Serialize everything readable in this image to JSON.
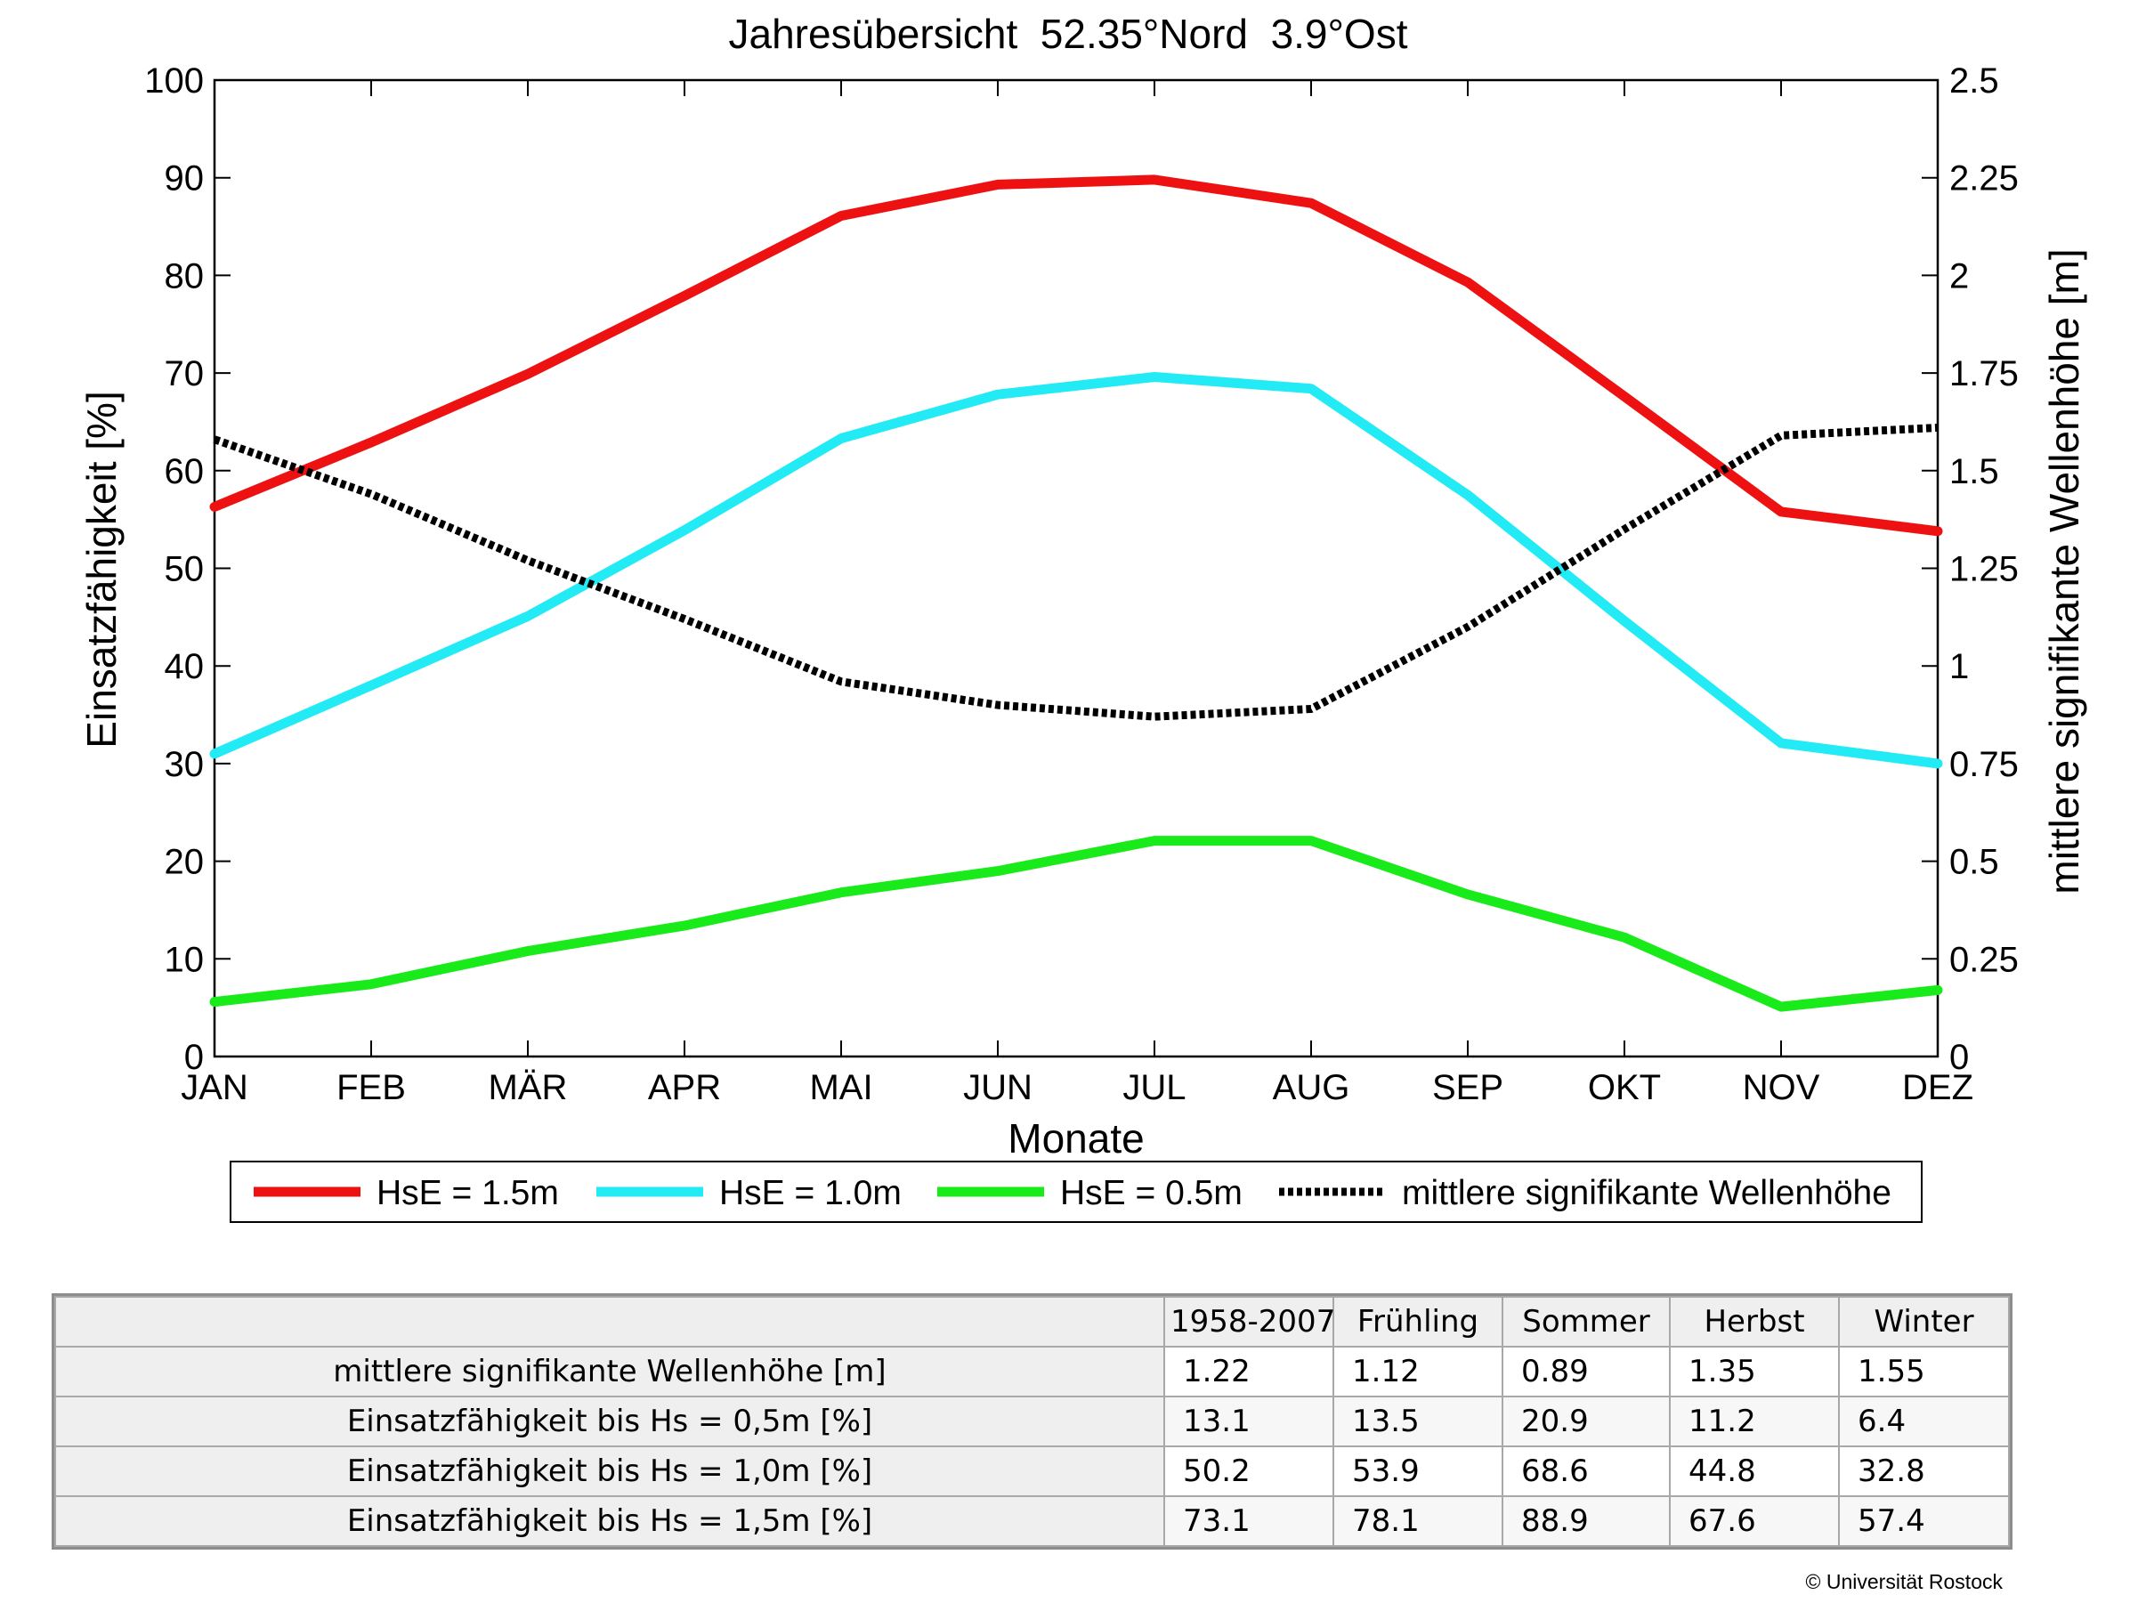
{
  "chart_data": {
    "type": "line",
    "title": "Jahresübersicht  52.35°Nord  3.9°Ost",
    "xlabel": "Monate",
    "ylabel": "Einsatzfähigkeit [%]",
    "y2label": "mittlere signifikante Wellenhöhe [m]",
    "categories": [
      "JAN",
      "FEB",
      "MÄR",
      "APR",
      "MAI",
      "JUN",
      "JUL",
      "AUG",
      "SEP",
      "OKT",
      "NOV",
      "DEZ"
    ],
    "ylim": [
      0,
      100
    ],
    "y2lim": [
      0,
      2.5
    ],
    "yticks": [
      "0",
      "10",
      "20",
      "30",
      "40",
      "50",
      "60",
      "70",
      "80",
      "90",
      "100"
    ],
    "y2ticks": [
      "0",
      "0.25",
      "0.5",
      "0.75",
      "1",
      "1.25",
      "1.5",
      "1.75",
      "2",
      "2.25",
      "2.5"
    ],
    "grid": false,
    "legend_position": "bottom",
    "series": [
      {
        "name": "HsE = 1.5m",
        "axis": "left",
        "color": "#ee1111",
        "style": "solid",
        "values": [
          56.3,
          62.9,
          69.9,
          77.9,
          86.1,
          89.3,
          89.8,
          87.4,
          79.3,
          67.6,
          55.8,
          53.8
        ]
      },
      {
        "name": "HsE = 1.0m",
        "axis": "left",
        "color": "#22ebf5",
        "style": "solid",
        "values": [
          31.0,
          38.0,
          45.1,
          53.9,
          63.3,
          67.8,
          69.6,
          68.4,
          57.5,
          44.6,
          32.1,
          30.0
        ]
      },
      {
        "name": "HsE = 0.5m",
        "axis": "left",
        "color": "#19ea19",
        "style": "solid",
        "values": [
          5.6,
          7.4,
          10.8,
          13.4,
          16.8,
          19.0,
          22.1,
          22.1,
          16.6,
          12.2,
          5.1,
          6.8
        ]
      },
      {
        "name": "mittlere signifikante Wellenhöhe",
        "axis": "right",
        "color": "#000000",
        "style": "dotted",
        "values": [
          1.58,
          1.44,
          1.27,
          1.12,
          0.96,
          0.9,
          0.87,
          0.89,
          1.1,
          1.35,
          1.59,
          1.61
        ]
      }
    ]
  },
  "table": {
    "columns": [
      "1958-2007",
      "Frühling",
      "Sommer",
      "Herbst",
      "Winter"
    ],
    "rows": [
      {
        "label": "mittlere signifikante Wellenhöhe [m]",
        "values": [
          "1.22",
          "1.12",
          "0.89",
          "1.35",
          "1.55"
        ]
      },
      {
        "label": "Einsatzfähigkeit bis Hs = 0,5m [%]",
        "values": [
          "13.1",
          "13.5",
          "20.9",
          "11.2",
          "6.4"
        ]
      },
      {
        "label": "Einsatzfähigkeit bis Hs = 1,0m [%]",
        "values": [
          "50.2",
          "53.9",
          "68.6",
          "44.8",
          "32.8"
        ]
      },
      {
        "label": "Einsatzfähigkeit bis Hs = 1,5m [%]",
        "values": [
          "73.1",
          "78.1",
          "88.9",
          "67.6",
          "57.4"
        ]
      }
    ]
  },
  "copyright": "© Universität Rostock"
}
